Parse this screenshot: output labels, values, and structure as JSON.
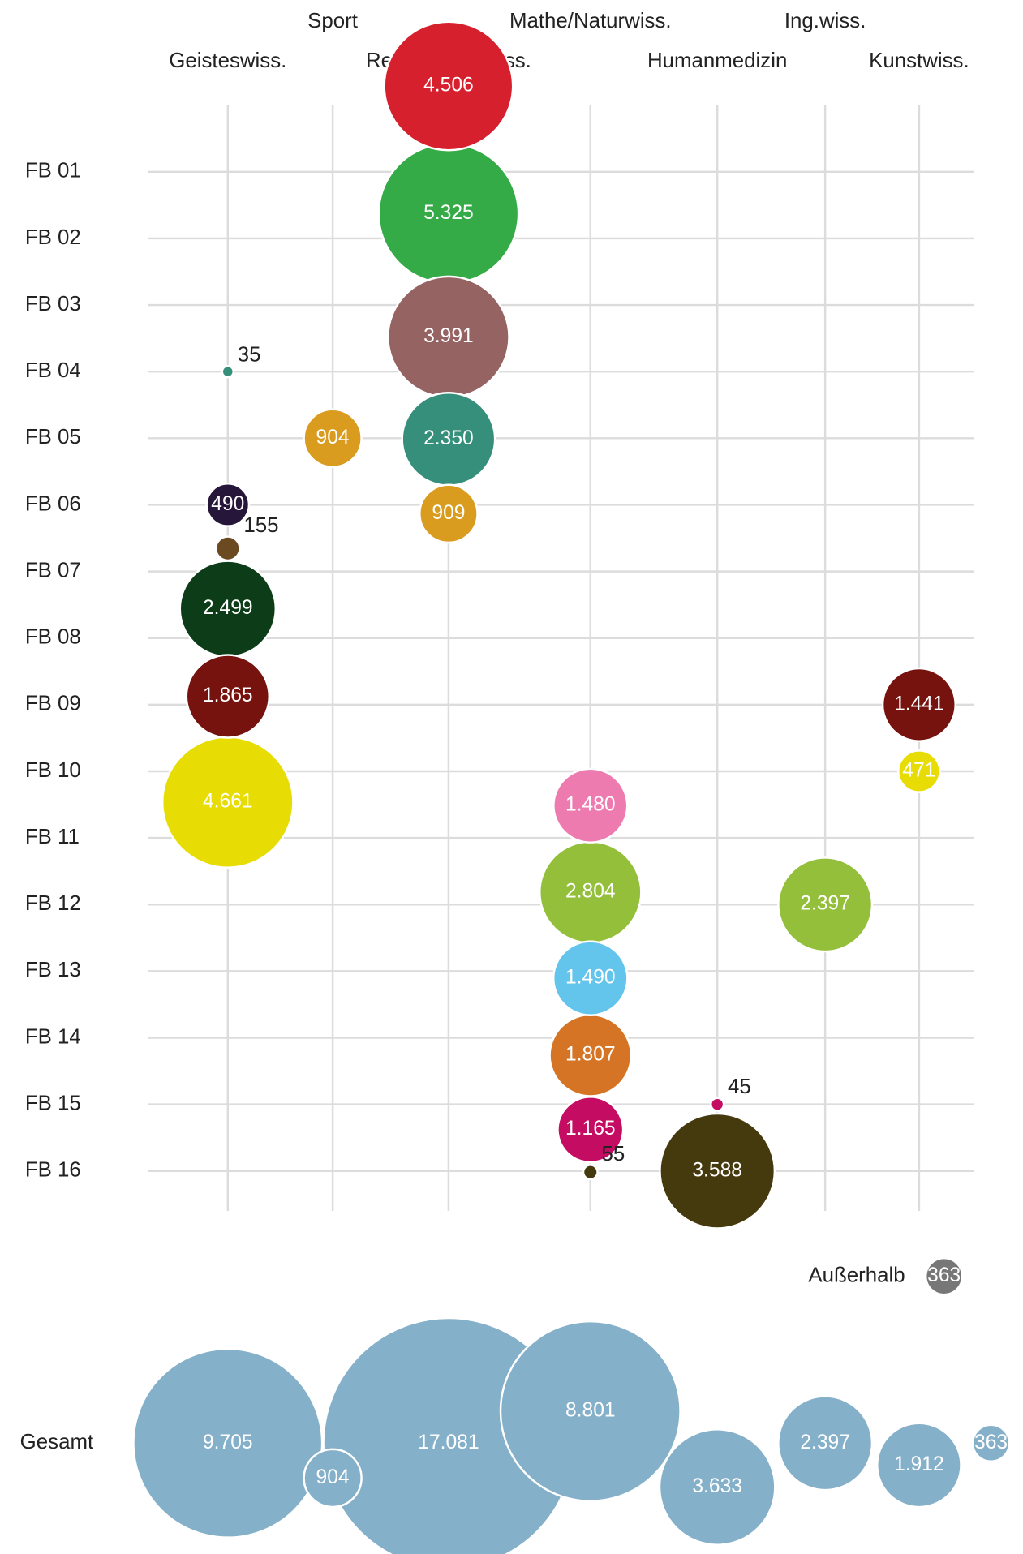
{
  "chart_data": {
    "type": "bubble",
    "columns": [
      "Geisteswiss.",
      "Sport",
      "Re-/Wi-/Soz.wiss.",
      "Mathe/Naturwiss.",
      "Humanmedizin",
      "Ing.wiss.",
      "Kunstwiss."
    ],
    "series": [
      {
        "name": "FB 01",
        "color": "#d7202e",
        "values": [
          null,
          null,
          4506,
          null,
          null,
          null,
          null
        ],
        "value_labels": [
          null,
          null,
          "4.506",
          null,
          null,
          null,
          null
        ]
      },
      {
        "name": "FB 02",
        "color": "#35ab47",
        "values": [
          null,
          null,
          5325,
          null,
          null,
          null,
          null
        ],
        "value_labels": [
          null,
          null,
          "5.325",
          null,
          null,
          null,
          null
        ]
      },
      {
        "name": "FB 03",
        "color": "#956362",
        "values": [
          null,
          null,
          3991,
          null,
          null,
          null,
          null
        ],
        "value_labels": [
          null,
          null,
          "3.991",
          null,
          null,
          null,
          null
        ]
      },
      {
        "name": "FB 04",
        "color": "#368f7b",
        "values": [
          35,
          null,
          2350,
          null,
          null,
          null,
          null
        ],
        "value_labels": [
          "35",
          null,
          "2.350",
          null,
          null,
          null,
          null
        ]
      },
      {
        "name": "FB 05",
        "color": "#d99c1e",
        "values": [
          null,
          904,
          909,
          null,
          null,
          null,
          null
        ],
        "value_labels": [
          null,
          "904",
          "909",
          null,
          null,
          null,
          null
        ]
      },
      {
        "name": "FB 06",
        "color": "#25163a",
        "values": [
          490,
          null,
          null,
          null,
          null,
          null,
          null
        ],
        "value_labels": [
          "490",
          null,
          null,
          null,
          null,
          null,
          null
        ]
      },
      {
        "name": "FB 07",
        "color": "#6b4a22",
        "values": [
          155,
          null,
          null,
          null,
          null,
          null,
          null
        ],
        "value_labels": [
          "155",
          null,
          null,
          null,
          null,
          null,
          null
        ]
      },
      {
        "name": "FB 08",
        "color": "#0c3d18",
        "values": [
          2499,
          null,
          null,
          null,
          null,
          null,
          null
        ],
        "value_labels": [
          "2.499",
          null,
          null,
          null,
          null,
          null,
          null
        ]
      },
      {
        "name": "FB 09",
        "color": "#76130f",
        "values": [
          1865,
          null,
          null,
          null,
          null,
          null,
          1441
        ],
        "value_labels": [
          "1.865",
          null,
          null,
          null,
          null,
          null,
          "1.441"
        ]
      },
      {
        "name": "FB 10",
        "color": "#e8dc05",
        "values": [
          4661,
          null,
          null,
          null,
          null,
          null,
          471
        ],
        "value_labels": [
          "4.661",
          null,
          null,
          null,
          null,
          null,
          "471"
        ]
      },
      {
        "name": "FB 11",
        "color": "#ee7bb0",
        "values": [
          null,
          null,
          null,
          1480,
          null,
          null,
          null
        ],
        "value_labels": [
          null,
          null,
          null,
          "1.480",
          null,
          null,
          null
        ]
      },
      {
        "name": "FB 12",
        "color": "#93bf3a",
        "values": [
          null,
          null,
          null,
          2804,
          null,
          2397,
          null
        ],
        "value_labels": [
          null,
          null,
          null,
          "2.804",
          null,
          "2.397",
          null
        ]
      },
      {
        "name": "FB 13",
        "color": "#63c4ec",
        "values": [
          null,
          null,
          null,
          1490,
          null,
          null,
          null
        ],
        "value_labels": [
          null,
          null,
          null,
          "1.490",
          null,
          null,
          null
        ]
      },
      {
        "name": "FB 14",
        "color": "#d57424",
        "values": [
          null,
          null,
          null,
          1807,
          null,
          null,
          null
        ],
        "value_labels": [
          null,
          null,
          null,
          "1.807",
          null,
          null,
          null
        ]
      },
      {
        "name": "FB 15",
        "color": "#c50c63",
        "values": [
          null,
          null,
          null,
          1165,
          45,
          null,
          null
        ],
        "value_labels": [
          null,
          null,
          null,
          "1.165",
          "45",
          null,
          null
        ]
      },
      {
        "name": "FB 16",
        "color": "#45390e",
        "values": [
          null,
          null,
          null,
          55,
          3588,
          null,
          null
        ],
        "value_labels": [
          null,
          null,
          null,
          "55",
          "3.588",
          null,
          null
        ]
      }
    ],
    "outside": {
      "label": "Außerhalb",
      "value": 363,
      "value_label": "363",
      "color": "#777777"
    },
    "total": {
      "label": "Gesamt",
      "color": "#85b0c9",
      "values": [
        9705,
        904,
        17081,
        8801,
        3633,
        2397,
        1912,
        363
      ],
      "value_labels": [
        "9.705",
        "904",
        "17.081",
        "8.801",
        "3.633",
        "2.397",
        "1.912",
        "363"
      ]
    }
  }
}
